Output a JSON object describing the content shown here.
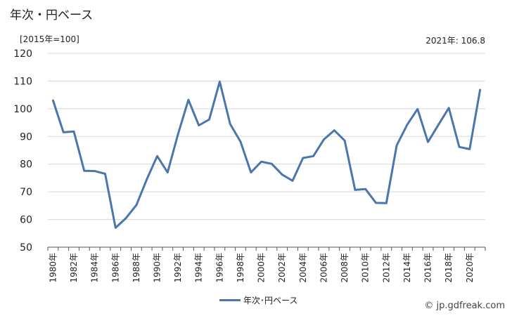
{
  "title": "年次・円ベース",
  "unit_note": "[2015年=100]",
  "latest_note": "2021年: 106.8",
  "credit": "© jp.gdfreak.com",
  "chart_data": {
    "type": "line",
    "ylim": [
      50,
      120
    ],
    "yticks": [
      50,
      60,
      70,
      80,
      90,
      100,
      110,
      120
    ],
    "grid": true,
    "legend_position": "bottom",
    "x": [
      1980,
      1981,
      1982,
      1983,
      1984,
      1985,
      1986,
      1987,
      1988,
      1989,
      1990,
      1991,
      1992,
      1993,
      1994,
      1995,
      1996,
      1997,
      1998,
      1999,
      2000,
      2001,
      2002,
      2003,
      2004,
      2005,
      2006,
      2007,
      2008,
      2009,
      2010,
      2011,
      2012,
      2013,
      2014,
      2015,
      2016,
      2017,
      2018,
      2019,
      2020,
      2021
    ],
    "xtick_labels": [
      "1980年",
      "1982年",
      "1984年",
      "1986年",
      "1988年",
      "1990年",
      "1992年",
      "1994年",
      "1996年",
      "1998年",
      "2000年",
      "2002年",
      "2004年",
      "2006年",
      "2008年",
      "2010年",
      "2012年",
      "2014年",
      "2016年",
      "2018年",
      "2020年"
    ],
    "series": [
      {
        "name": "年次･円ベース",
        "color": "#4a76ad",
        "values": [
          103.0,
          91.5,
          91.8,
          77.6,
          77.5,
          76.5,
          57.0,
          60.5,
          65.2,
          74.5,
          82.9,
          77.0,
          90.8,
          103.2,
          94.0,
          96.1,
          109.8,
          94.5,
          88.1,
          77.0,
          80.9,
          80.1,
          76.2,
          74.0,
          82.2,
          82.9,
          88.9,
          92.2,
          88.5,
          70.7,
          71.0,
          66.0,
          65.9,
          86.8,
          94.2,
          99.9,
          88.0,
          94.2,
          100.3,
          86.2,
          85.4,
          106.8
        ]
      }
    ]
  }
}
